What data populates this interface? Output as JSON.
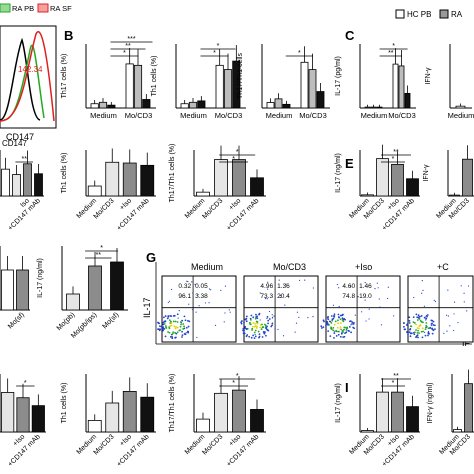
{
  "figure": {
    "legend_top_left": [
      "RA PB",
      "RA SF"
    ],
    "legend_top_right": [
      "HC PB",
      "RA"
    ],
    "histogram": {
      "value_label": "142.34",
      "xlabel": "CD147"
    },
    "panel_letters": [
      "B",
      "C",
      "E",
      "G",
      "I"
    ],
    "flow": {
      "column_titles": [
        "Medium",
        "Mo/CD3",
        "+Iso",
        "+C"
      ],
      "y_label": "IL-17",
      "x_label": "IF",
      "quadrant_values": [
        [
          "0.32",
          "0.05",
          "96.1",
          "3.38"
        ],
        [
          "4.96",
          "1.36",
          "73.3",
          "20.4"
        ],
        [
          "4.60",
          "1.46",
          "74.8",
          "19.0"
        ],
        [
          "",
          "",
          "",
          ""
        ]
      ]
    }
  },
  "chart_data": [
    {
      "type": "bar",
      "id": "B1",
      "ylabel": "Th17 cells (%)",
      "groups": [
        "Medium",
        "Mo/CD3"
      ],
      "series": [
        {
          "name": "HC PB",
          "values": [
            0.3,
            3.1
          ]
        },
        {
          "name": "RA PB",
          "values": [
            0.4,
            3.0
          ]
        },
        {
          "name": "RA SF",
          "values": [
            0.2,
            0.6
          ]
        }
      ],
      "sig": [
        "*",
        "**",
        "***"
      ]
    },
    {
      "type": "bar",
      "id": "B2",
      "ylabel": "Th1 cells (%)",
      "groups": [
        "Medium",
        "Mo/CD3"
      ],
      "series": [
        {
          "name": "HC PB",
          "values": [
            0.3,
            3.0
          ]
        },
        {
          "name": "RA PB",
          "values": [
            0.4,
            2.7
          ]
        },
        {
          "name": "RA SF",
          "values": [
            0.5,
            3.3
          ]
        }
      ],
      "sig": [
        "*",
        "*"
      ]
    },
    {
      "type": "bar",
      "id": "B3",
      "ylabel": "Th17/Th1 cells",
      "groups": [
        "Medium",
        "Mo/CD3"
      ],
      "series": [
        {
          "name": "HC PB",
          "values": [
            0.3,
            2.5
          ]
        },
        {
          "name": "RA PB",
          "values": [
            0.5,
            2.1
          ]
        },
        {
          "name": "RA SF",
          "values": [
            0.2,
            0.9
          ]
        }
      ],
      "sig": [
        "*"
      ]
    },
    {
      "type": "bar",
      "id": "C1",
      "ylabel": "IL-17 (pg/ml)",
      "groups": [
        "Medium",
        "Mo/CD3"
      ],
      "series": [
        {
          "name": "HC PB",
          "values": [
            0.05,
            2.4
          ]
        },
        {
          "name": "RA PB",
          "values": [
            0.05,
            2.3
          ]
        },
        {
          "name": "RA SF",
          "values": [
            0.05,
            0.8
          ]
        }
      ],
      "sig": [
        "**",
        "*"
      ]
    },
    {
      "type": "bar",
      "id": "C2",
      "ylabel": "IFN-γ",
      "groups": [
        "Medium"
      ],
      "series": [
        {
          "name": "HC PB",
          "values": [
            0.1
          ]
        }
      ]
    },
    {
      "type": "bar",
      "id": "D1",
      "xlabel": "CD147",
      "ylabel": "",
      "categories": [
        "",
        "",
        "Iso",
        "+CD147 mAb"
      ],
      "values": [
        3.5,
        2.8,
        4.2,
        2.9
      ],
      "sig": [
        "**"
      ]
    },
    {
      "type": "bar",
      "id": "D2",
      "ylabel": "Th1 cells (%)",
      "categories": [
        "Medium",
        "Mo/CD3",
        "+Iso",
        "+CD147 mAb"
      ],
      "values": [
        1.3,
        4.4,
        4.3,
        4.0
      ]
    },
    {
      "type": "bar",
      "id": "D3",
      "ylabel": "Th17/Th1 cells (%)",
      "categories": [
        "Medium",
        "Mo/CD3",
        "+Iso",
        "+CD147 mAb"
      ],
      "values": [
        0.2,
        1.9,
        1.9,
        0.95
      ],
      "sig": [
        "*",
        "*"
      ]
    },
    {
      "type": "bar",
      "id": "E1",
      "ylabel": "IL-17 (ng/ml)",
      "categories": [
        "Medium",
        "Mo/CD3",
        "+Iso",
        "+CD147 mAb"
      ],
      "values": [
        0.02,
        0.65,
        0.55,
        0.3
      ],
      "sig": [
        "*",
        "**"
      ]
    },
    {
      "type": "bar",
      "id": "E2",
      "ylabel": "IFN-γ",
      "categories": [
        "Medium",
        "Mo/CD3"
      ],
      "values": [
        0.05,
        2.0
      ]
    },
    {
      "type": "bar",
      "id": "F1",
      "categories": [
        "",
        "Mo(sf)"
      ],
      "values": [
        0.5,
        0.5
      ]
    },
    {
      "type": "bar",
      "id": "F2",
      "ylabel": "IL-17 (ng/ml)",
      "categories": [
        "Mo(pb)",
        "Mo(pb/ips)",
        "Mo(sf)"
      ],
      "values": [
        0.2,
        0.55,
        0.6
      ],
      "sig": [
        "**",
        "*"
      ]
    },
    {
      "type": "bar",
      "id": "H1",
      "categories": [
        "",
        "+Iso",
        "+CD147 mAb"
      ],
      "values": [
        1.5,
        1.3,
        1.0
      ],
      "sig": [
        "*"
      ]
    },
    {
      "type": "bar",
      "id": "H2",
      "ylabel": "Th1 cells (%)",
      "categories": [
        "Medium",
        "Mo/CD3",
        "+Iso",
        "+CD147 mAb"
      ],
      "values": [
        0.8,
        2.0,
        2.8,
        2.4
      ]
    },
    {
      "type": "bar",
      "id": "H3",
      "ylabel": "Th17/Th1 cells (%)",
      "categories": [
        "Medium",
        "Mo/CD3",
        "+Iso",
        "+CD147 mAb"
      ],
      "values": [
        0.2,
        0.6,
        0.65,
        0.35
      ],
      "sig": [
        "*",
        "*"
      ]
    },
    {
      "type": "bar",
      "id": "I1",
      "ylabel": "IL-17 (ng/ml)",
      "categories": [
        "Medium",
        "Mo/CD3",
        "+Iso",
        "+CD147 mAb"
      ],
      "values": [
        0.02,
        0.55,
        0.55,
        0.35
      ],
      "sig": [
        "*",
        "**"
      ]
    },
    {
      "type": "bar",
      "id": "I2",
      "ylabel": "IFN-γ (ng/ml)",
      "categories": [
        "Medium",
        "Mo/CD3"
      ],
      "values": [
        0.05,
        1.0
      ]
    }
  ]
}
